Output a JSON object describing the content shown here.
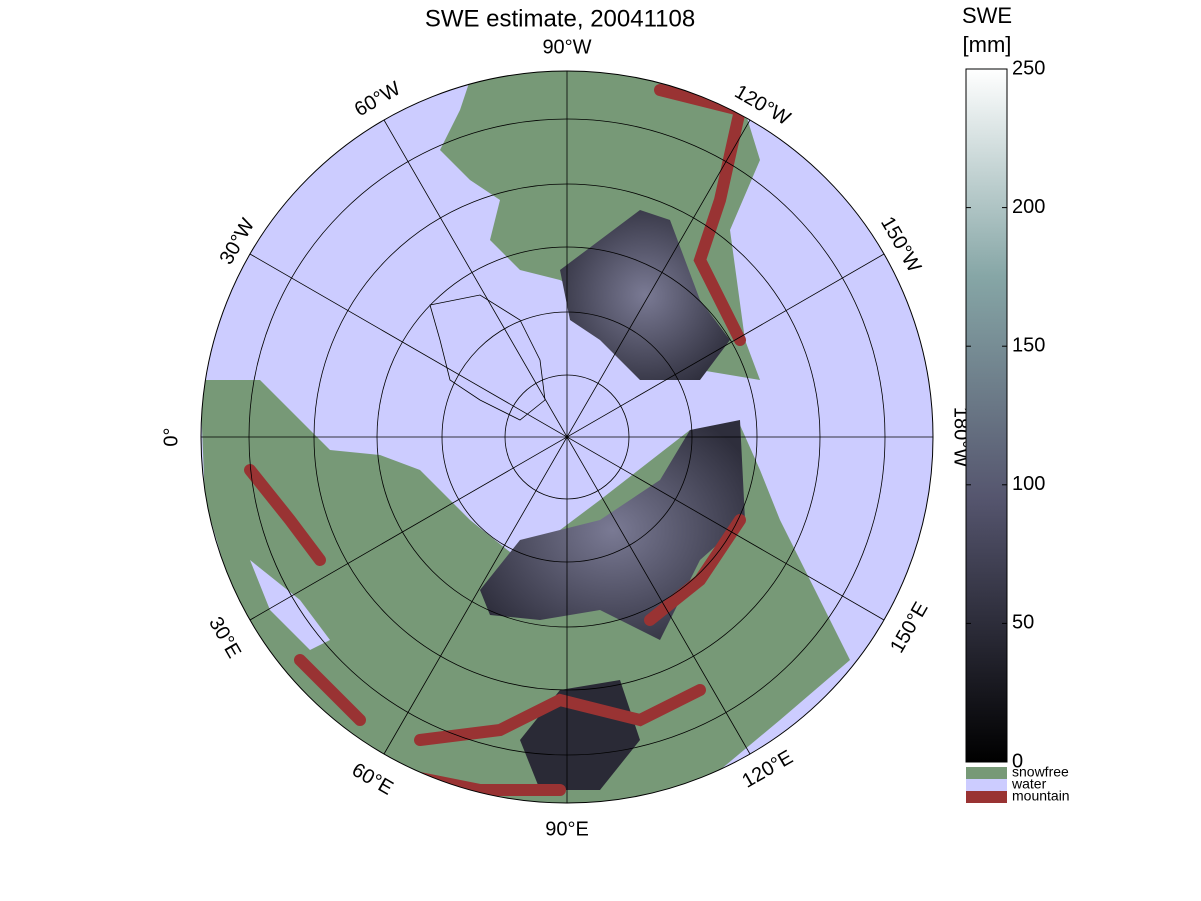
{
  "map": {
    "title": "SWE estimate, 20041108",
    "longitude_labels": [
      "90°W",
      "120°W",
      "150°W",
      "180°W",
      "150°E",
      "120°E",
      "90°E",
      "60°E",
      "30°E",
      "0°",
      "30°W",
      "60°W"
    ]
  },
  "colorbar": {
    "title": [
      "SWE",
      "[mm]"
    ],
    "lim": [
      0,
      250
    ],
    "ticks": [
      0,
      50,
      100,
      150,
      200,
      250
    ]
  },
  "legend": [
    {
      "label": "snowfree",
      "color": "#779977"
    },
    {
      "label": "water",
      "color": "#ccccff"
    },
    {
      "label": "mountain",
      "color": "#993333"
    }
  ]
}
